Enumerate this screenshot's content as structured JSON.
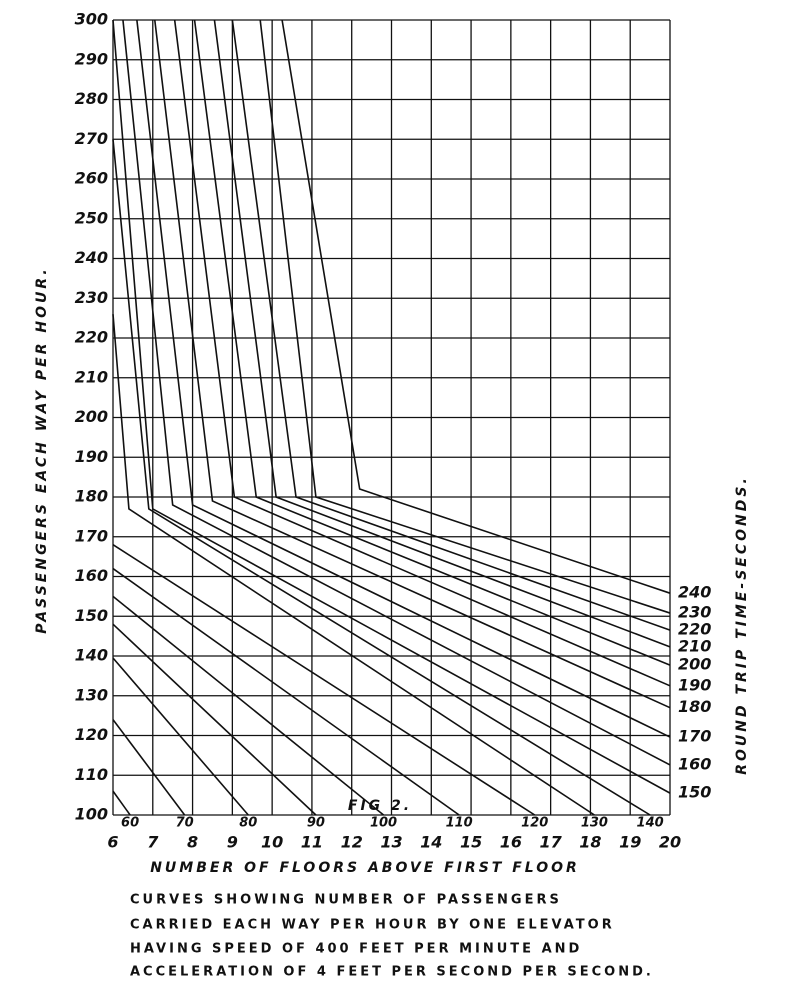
{
  "chart_data": {
    "type": "line",
    "title": "FIG 2.",
    "x_label": "NUMBER OF FLOORS ABOVE FIRST FLOOR",
    "y_label": "PASSENGERS EACH WAY PER HOUR.",
    "series_label": "ROUND TRIP TIME-SECONDS.",
    "caption": [
      "CURVES SHOWING NUMBER OF PASSENGERS",
      "CARRIED EACH WAY PER HOUR BY ONE ELEVATOR",
      "HAVING SPEED OF 400 FEET PER MINUTE AND",
      "ACCELERATION OF 4 FEET PER SECOND PER SECOND."
    ],
    "xlim": [
      6,
      20
    ],
    "xticks": [
      6,
      7,
      8,
      9,
      10,
      11,
      12,
      13,
      14,
      15,
      16,
      17,
      18,
      19,
      20
    ],
    "ylim": [
      100,
      300
    ],
    "yticks": [
      100,
      110,
      120,
      130,
      140,
      150,
      160,
      170,
      180,
      190,
      200,
      210,
      220,
      230,
      240,
      250,
      260,
      270,
      280,
      290,
      300
    ],
    "grid": true,
    "color": "#111111",
    "series": [
      {
        "name": "60",
        "x": [
          6,
          6.43
        ],
        "values": [
          106,
          100
        ]
      },
      {
        "name": "70",
        "x": [
          6,
          7.8
        ],
        "values": [
          124,
          100
        ]
      },
      {
        "name": "80",
        "x": [
          6,
          9.4
        ],
        "values": [
          139.5,
          100
        ]
      },
      {
        "name": "90",
        "x": [
          6,
          11.1
        ],
        "values": [
          148,
          100
        ]
      },
      {
        "name": "100",
        "x": [
          6,
          12.8
        ],
        "values": [
          155,
          100
        ]
      },
      {
        "name": "110",
        "x": [
          6,
          14.7
        ],
        "values": [
          162,
          100
        ]
      },
      {
        "name": "120",
        "x": [
          6,
          16.6
        ],
        "values": [
          168,
          100
        ]
      },
      {
        "name": "130",
        "x": [
          6,
          6.4,
          18.1
        ],
        "values": [
          226,
          177,
          100
        ]
      },
      {
        "name": "140",
        "x": [
          6,
          6.9,
          19.5
        ],
        "values": [
          270,
          177,
          100
        ]
      },
      {
        "name": "150",
        "x": [
          6,
          7.0,
          20
        ],
        "values": [
          300,
          177,
          105.5
        ]
      },
      {
        "name": "160",
        "x": [
          6.25,
          7.5,
          20
        ],
        "values": [
          300,
          178,
          112.6
        ]
      },
      {
        "name": "170",
        "x": [
          6.6,
          8.0,
          20
        ],
        "values": [
          300,
          178,
          119.6
        ]
      },
      {
        "name": "180",
        "x": [
          7.05,
          8.5,
          20
        ],
        "values": [
          300,
          179,
          127
        ]
      },
      {
        "name": "190",
        "x": [
          7.55,
          9.05,
          20
        ],
        "values": [
          300,
          180,
          132.5
        ]
      },
      {
        "name": "200",
        "x": [
          8.05,
          9.6,
          20
        ],
        "values": [
          300,
          180,
          137.7
        ]
      },
      {
        "name": "210",
        "x": [
          8.55,
          10.1,
          20
        ],
        "values": [
          300,
          180,
          142.3
        ]
      },
      {
        "name": "220",
        "x": [
          9.0,
          10.6,
          20
        ],
        "values": [
          300,
          180,
          146.5
        ]
      },
      {
        "name": "230",
        "x": [
          9.7,
          11.1,
          20
        ],
        "values": [
          300,
          180,
          150.8
        ]
      },
      {
        "name": "240",
        "x": [
          10.25,
          12.2,
          20
        ],
        "values": [
          300,
          182,
          155.8
        ]
      }
    ]
  }
}
